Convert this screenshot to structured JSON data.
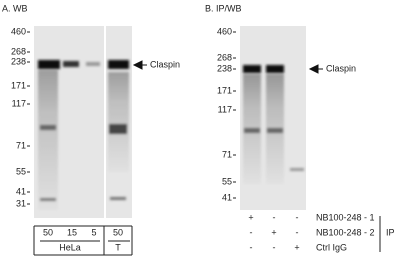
{
  "panels": [
    {
      "title": "A. WB",
      "markers": [
        "460",
        "268",
        "238",
        "171",
        "117",
        "71",
        "55",
        "41",
        "31"
      ],
      "target": "Claspin",
      "loads": [
        "50",
        "15",
        "5",
        "50"
      ],
      "cell_lines": [
        "HeLa",
        "T"
      ]
    },
    {
      "title": "B. IP/WB",
      "markers": [
        "460",
        "268",
        "238",
        "171",
        "117",
        "71",
        "55",
        "41"
      ],
      "target": "Claspin",
      "rows": [
        {
          "label": "NB100-248 - 1",
          "signs": [
            "+",
            "-",
            "-"
          ]
        },
        {
          "label": "NB100-248 - 2",
          "signs": [
            "-",
            "+",
            "-"
          ]
        },
        {
          "label": "Ctrl IgG",
          "signs": [
            "-",
            "-",
            "+"
          ]
        }
      ],
      "group_label": "IP"
    }
  ]
}
